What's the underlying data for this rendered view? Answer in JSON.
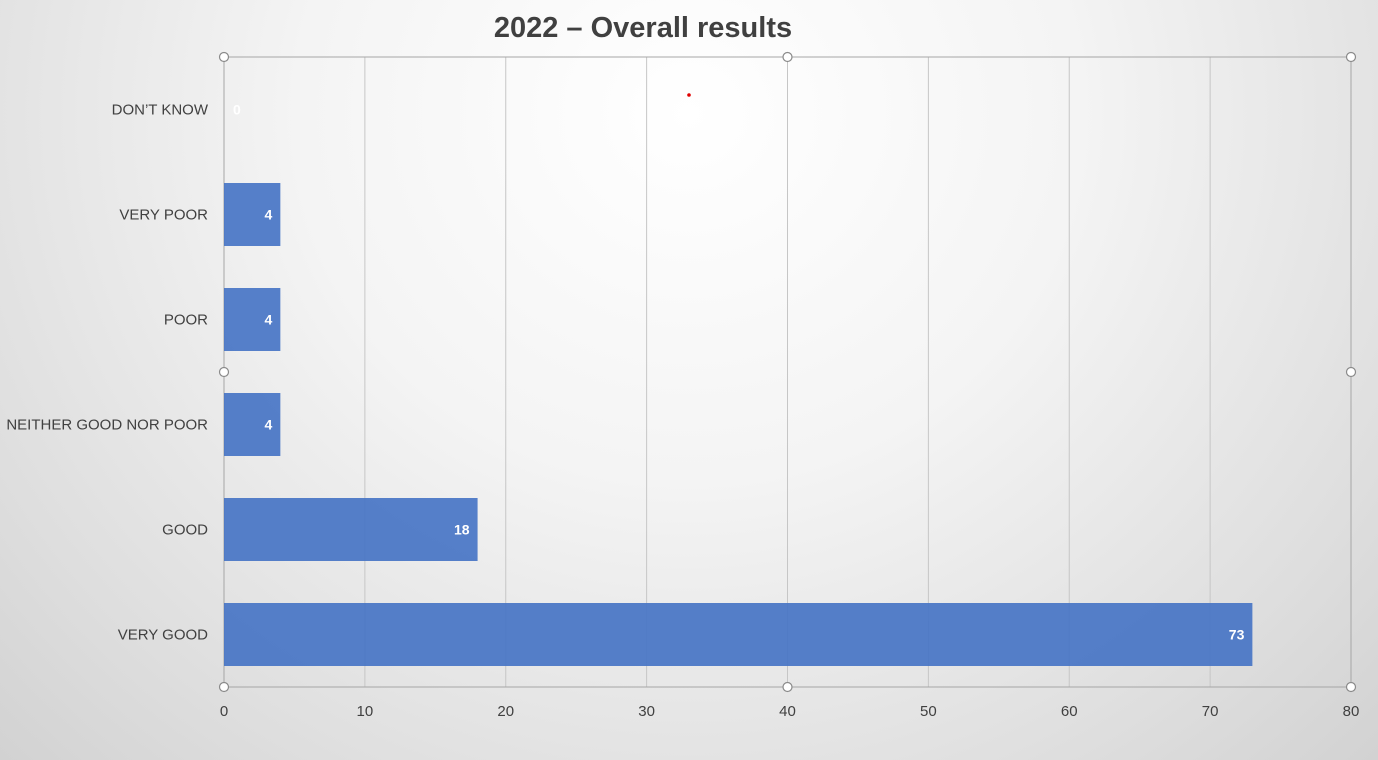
{
  "chart_data": {
    "type": "bar",
    "orientation": "horizontal",
    "title": "2022 – Overall results",
    "categories": [
      "DON’T KNOW",
      "VERY POOR",
      "POOR",
      "NEITHER GOOD NOR POOR",
      "GOOD",
      "VERY GOOD"
    ],
    "values": [
      0,
      4,
      4,
      4,
      18,
      73
    ],
    "xlim": [
      0,
      80
    ],
    "xticks": [
      0,
      10,
      20,
      30,
      40,
      50,
      60,
      70,
      80
    ],
    "grid": true,
    "bar_color": "#4472C4",
    "label_color": "#ffffff"
  }
}
